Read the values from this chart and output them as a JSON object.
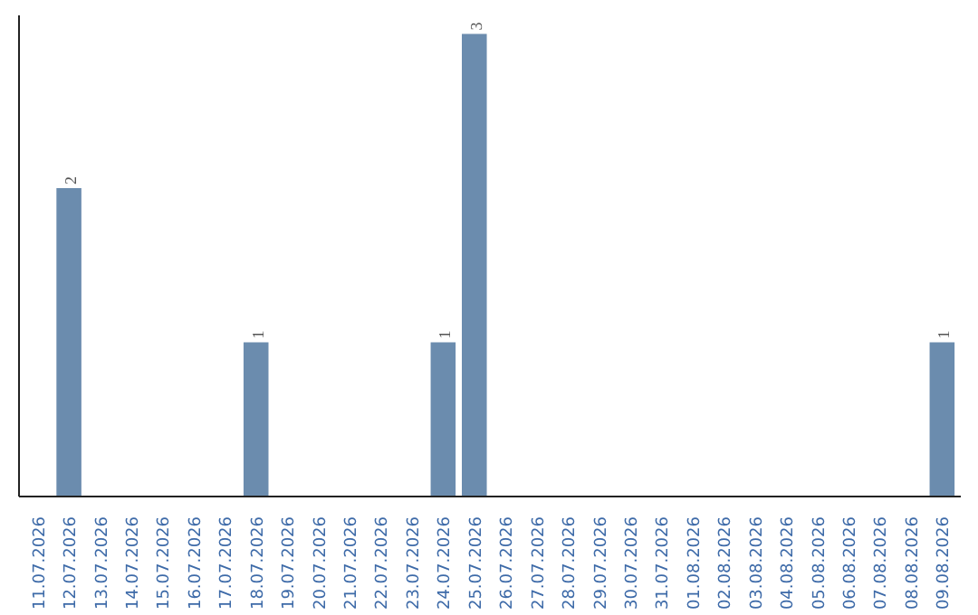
{
  "chart_data": {
    "type": "bar",
    "categories": [
      "11.07.2026",
      "12.07.2026",
      "13.07.2026",
      "14.07.2026",
      "15.07.2026",
      "16.07.2026",
      "17.07.2026",
      "18.07.2026",
      "19.07.2026",
      "20.07.2026",
      "21.07.2026",
      "22.07.2026",
      "23.07.2026",
      "24.07.2026",
      "25.07.2026",
      "26.07.2026",
      "27.07.2026",
      "28.07.2026",
      "29.07.2026",
      "30.07.2026",
      "31.07.2026",
      "01.08.2026",
      "02.08.2026",
      "03.08.2026",
      "04.08.2026",
      "05.08.2026",
      "06.08.2026",
      "07.08.2026",
      "08.08.2026",
      "09.08.2026"
    ],
    "values": [
      0,
      2,
      0,
      0,
      0,
      0,
      0,
      1,
      0,
      0,
      0,
      0,
      0,
      1,
      3,
      0,
      0,
      0,
      0,
      0,
      0,
      0,
      0,
      0,
      0,
      0,
      0,
      0,
      0,
      1
    ],
    "value_labels": [
      null,
      "2",
      null,
      null,
      null,
      null,
      null,
      "1",
      null,
      null,
      null,
      null,
      null,
      "1",
      "3",
      null,
      null,
      null,
      null,
      null,
      null,
      null,
      null,
      null,
      null,
      null,
      null,
      null,
      null,
      "1"
    ],
    "color": "#6b8cae",
    "grid": false,
    "tick_labels": "x"
  }
}
